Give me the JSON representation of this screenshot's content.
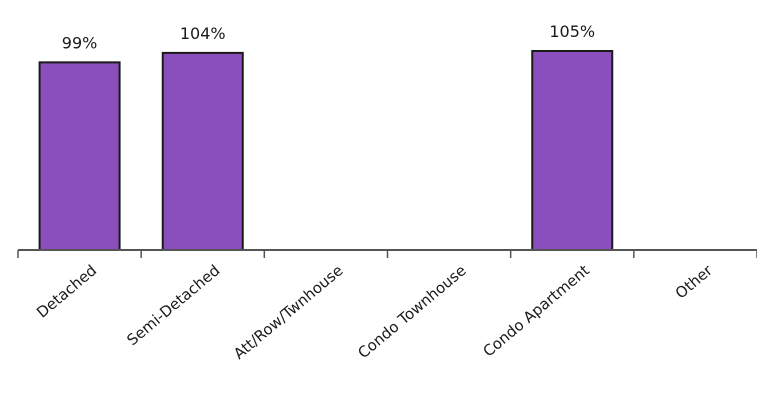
{
  "chart_data": {
    "type": "bar",
    "categories": [
      "Detached",
      "Semi-Detached",
      "Att/Row/Twnhouse",
      "Condo Townhouse",
      "Condo Apartment",
      "Other"
    ],
    "values": [
      99,
      104,
      null,
      null,
      105,
      null
    ],
    "data_labels": [
      "99%",
      "104%",
      "",
      "",
      "105%",
      ""
    ],
    "title": "",
    "xlabel": "",
    "ylabel": "",
    "ylim": [
      0,
      105
    ],
    "grid": false,
    "legend": "none",
    "bar_color": "#8b4fbd",
    "bar_edge_color": "#1a1a1a"
  }
}
